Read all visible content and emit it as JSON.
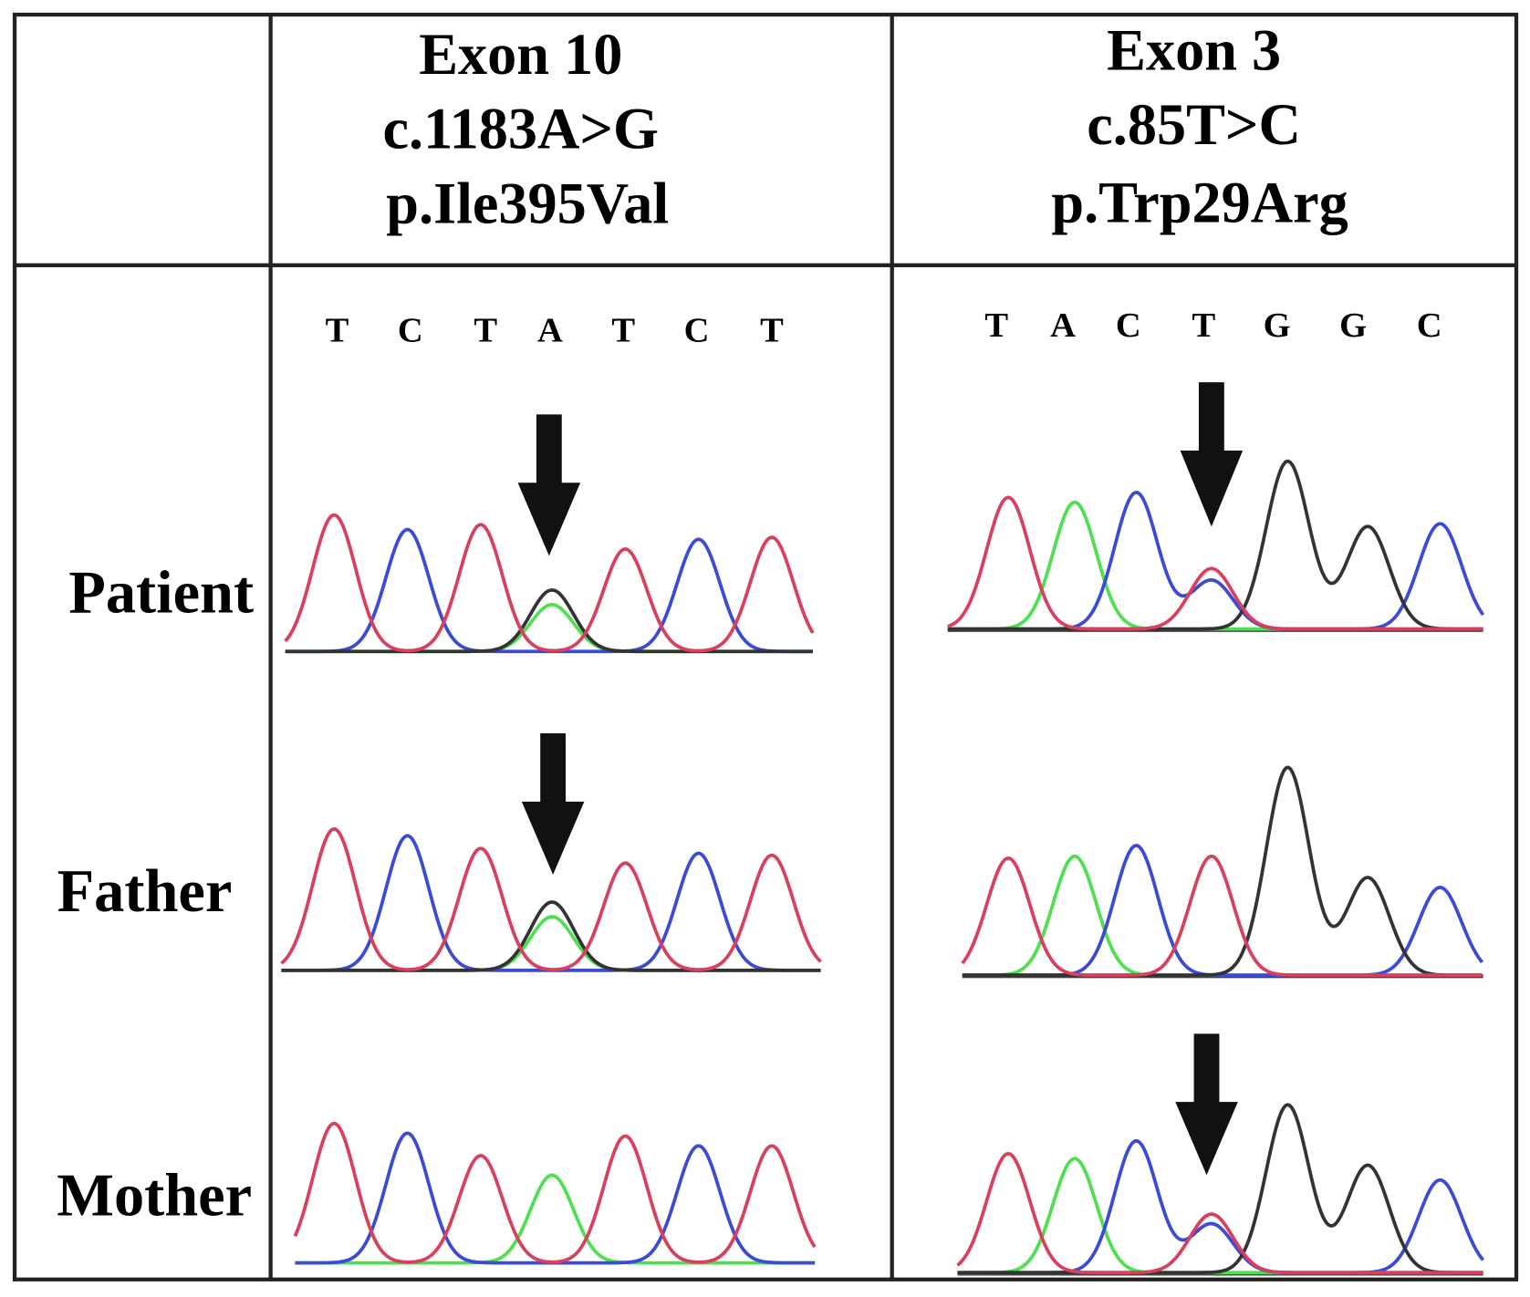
{
  "header": {
    "columns": [
      {
        "lines": [
          "Exon 10",
          "c.1183A>G",
          "p.Ile395Val"
        ]
      },
      {
        "lines": [
          "Exon 3",
          "c.85T>C",
          "p.Trp29Arg"
        ]
      }
    ]
  },
  "rows": [
    "Patient",
    "Father",
    "Mother"
  ],
  "sequences": [
    [
      "T",
      "C",
      "T",
      "A",
      "T",
      "C",
      "T"
    ],
    [
      "T",
      "A",
      "C",
      "T",
      "G",
      "G",
      "C"
    ]
  ]
}
